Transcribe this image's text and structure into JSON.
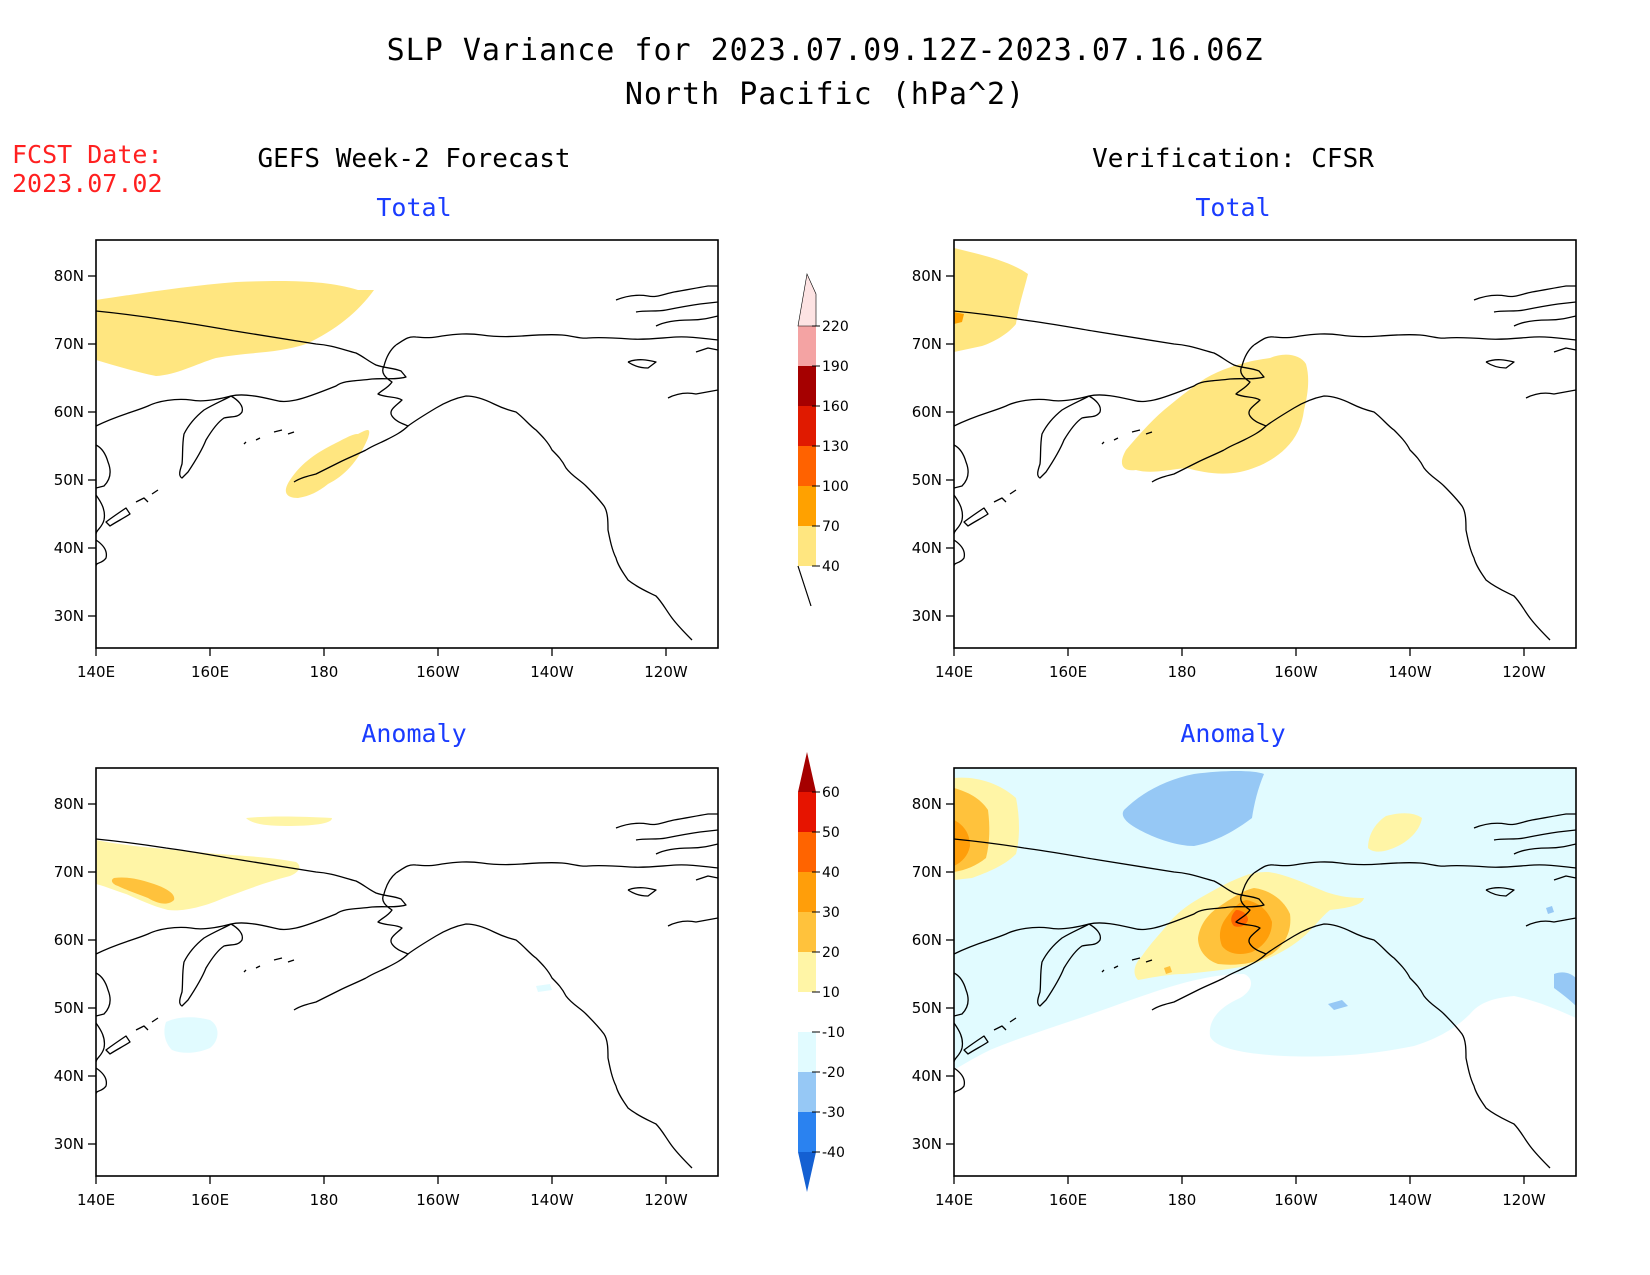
{
  "title": {
    "line1": "SLP Variance for 2023.07.09.12Z-2023.07.16.06Z",
    "line2": "North Pacific (hPa^2)"
  },
  "fcst": {
    "label": "FCST Date:",
    "date": "2023.07.02"
  },
  "columns": {
    "left": "GEFS Week-2 Forecast",
    "right": "Verification: CFSR"
  },
  "panel_titles": {
    "total": "Total",
    "anomaly": "Anomaly"
  },
  "axes": {
    "lon_labels": [
      "140E",
      "160E",
      "180",
      "160W",
      "140W",
      "120W"
    ],
    "lat_labels": [
      "80N",
      "70N",
      "60N",
      "50N",
      "40N",
      "30N"
    ]
  },
  "colorbars": {
    "total": {
      "levels": [
        "40",
        "70",
        "100",
        "130",
        "160",
        "190",
        "220"
      ],
      "colors": [
        "#ffe680",
        "#ffa100",
        "#ff6200",
        "#e01a00",
        "#a50000",
        "#f4a3a3",
        "#fde3e3"
      ]
    },
    "anomaly": {
      "levels": [
        "-40",
        "-30",
        "-20",
        "-10",
        "10",
        "20",
        "30",
        "40",
        "50",
        "60"
      ],
      "colors": [
        "#1460d2",
        "#2a82f0",
        "#96c8f5",
        "#e1fbff",
        "#ffffff",
        "#fff5a6",
        "#ffc23c",
        "#ff9e0a",
        "#ff6400",
        "#e61400",
        "#a50000"
      ]
    }
  }
}
